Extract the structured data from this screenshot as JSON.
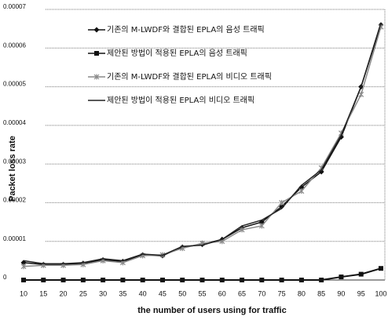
{
  "chart_data": {
    "type": "line",
    "xlabel": "the number of users using for traffic",
    "ylabel": "Packet loss rate",
    "categories": [
      "10",
      "15",
      "20",
      "25",
      "30",
      "35",
      "40",
      "45",
      "50",
      "55",
      "60",
      "65",
      "70",
      "75",
      "80",
      "85",
      "90",
      "95",
      "100"
    ],
    "ylim": [
      0,
      7e-05
    ],
    "yticks": [
      0,
      1e-05,
      2e-05,
      3e-05,
      4e-05,
      5e-05,
      6e-05,
      7e-05
    ],
    "grid": true,
    "legend": "upper left",
    "series": [
      {
        "name": "기존의 M-LWDF와 결합된 EPLA의 음성 트래픽",
        "color": "#111111",
        "marker": "diamond",
        "values": [
          4.5e-06,
          4e-06,
          4e-06,
          4.3e-06,
          5.2e-06,
          4.8e-06,
          6.5e-06,
          6.3e-06,
          8.5e-06,
          9.2e-06,
          1.05e-05,
          1.35e-05,
          1.5e-05,
          1.9e-05,
          2.4e-05,
          2.8e-05,
          3.7e-05,
          5e-05,
          6.6e-05
        ]
      },
      {
        "name": "제안된 방법이 적용된 EPLA의 음성 트래픽",
        "color": "#111111",
        "marker": "square",
        "values": [
          0,
          0,
          0,
          0,
          0,
          0,
          0,
          0,
          0,
          0,
          0,
          0,
          0,
          0,
          0,
          0,
          8e-07,
          1.5e-06,
          3e-06
        ]
      },
      {
        "name": "기존의 M-LWDF와 결합된 EPLA의 비디오 트래픽",
        "color": "#8a8a8a",
        "marker": "cross",
        "values": [
          3.5e-06,
          3.8e-06,
          3.8e-06,
          4e-06,
          5e-06,
          4.5e-06,
          6.3e-06,
          6.5e-06,
          8.2e-06,
          9.5e-06,
          1e-05,
          1.3e-05,
          1.4e-05,
          2e-05,
          2.3e-05,
          2.9e-05,
          3.8e-05,
          4.8e-05,
          6.55e-05
        ]
      },
      {
        "name": "제안된 방법이 적용된 EPLA의 비디오 트래픽",
        "color": "#222222",
        "marker": "none",
        "values": [
          5e-06,
          4.2e-06,
          4.2e-06,
          4.5e-06,
          5.5e-06,
          5e-06,
          6.7e-06,
          6.4e-06,
          8.7e-06,
          9e-06,
          1.05e-05,
          1.4e-05,
          1.55e-05,
          1.85e-05,
          2.45e-05,
          2.85e-05,
          3.75e-05,
          5e-05,
          6.65e-05
        ]
      }
    ]
  }
}
